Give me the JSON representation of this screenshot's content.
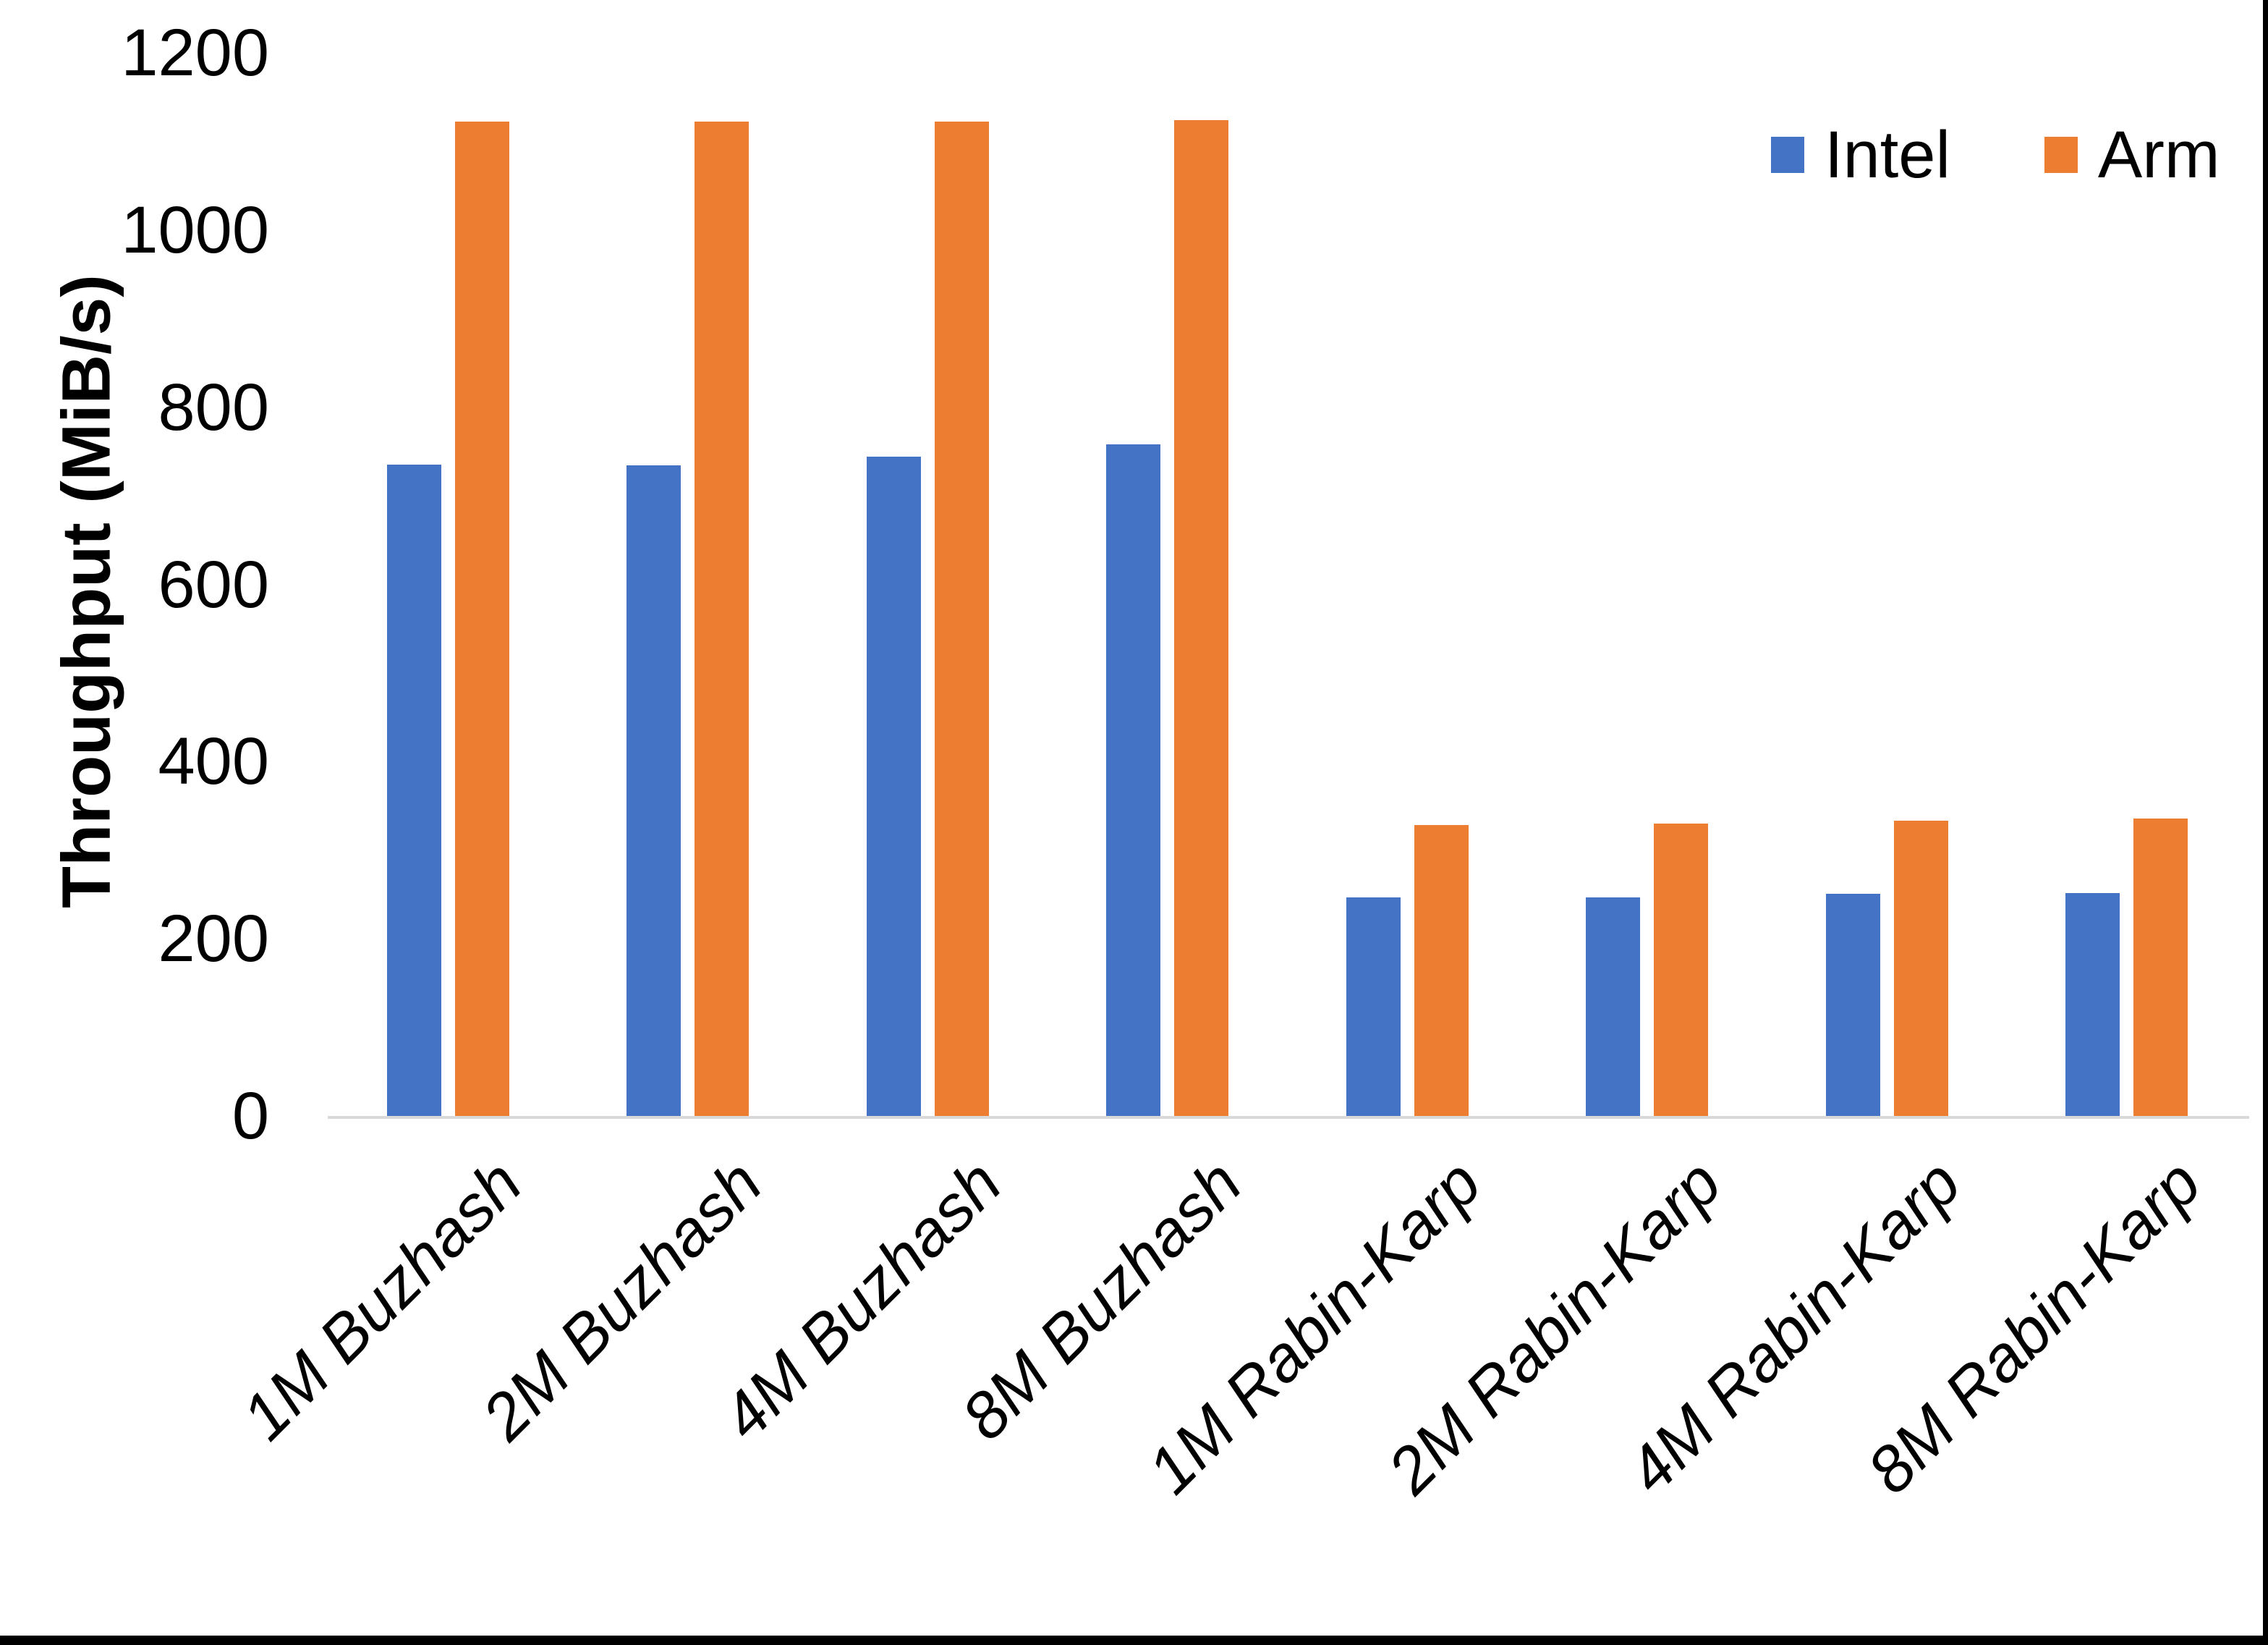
{
  "chart_data": {
    "type": "bar",
    "title": "",
    "xlabel": "",
    "ylabel": "Throughput (MiB/s)",
    "ylim": [
      0,
      1200
    ],
    "yticks": [
      0,
      200,
      400,
      600,
      800,
      1000,
      1200
    ],
    "grid": false,
    "legend_position": "top-right",
    "axis_line_color": "#d9d9d9",
    "text_color": "#000000",
    "categories": [
      "1M Buzhash",
      "2M Buzhash",
      "4M Buzhash",
      "8M Buzhash",
      "1M Rabin-Karp",
      "2M Rabin-Karp",
      "4M Rabin-Karp",
      "8M Rabin-Karp"
    ],
    "series": [
      {
        "name": "Intel",
        "color": "#4472C4",
        "values": [
          735,
          734,
          744,
          758,
          247,
          247,
          251,
          252
        ]
      },
      {
        "name": "Arm",
        "color": "#ED7D31",
        "values": [
          1122,
          1122,
          1122,
          1124,
          328,
          330,
          333,
          336
        ]
      }
    ]
  },
  "legend": {
    "items": [
      {
        "label": "Intel",
        "color": "#4472C4"
      },
      {
        "label": "Arm",
        "color": "#ED7D31"
      }
    ]
  }
}
